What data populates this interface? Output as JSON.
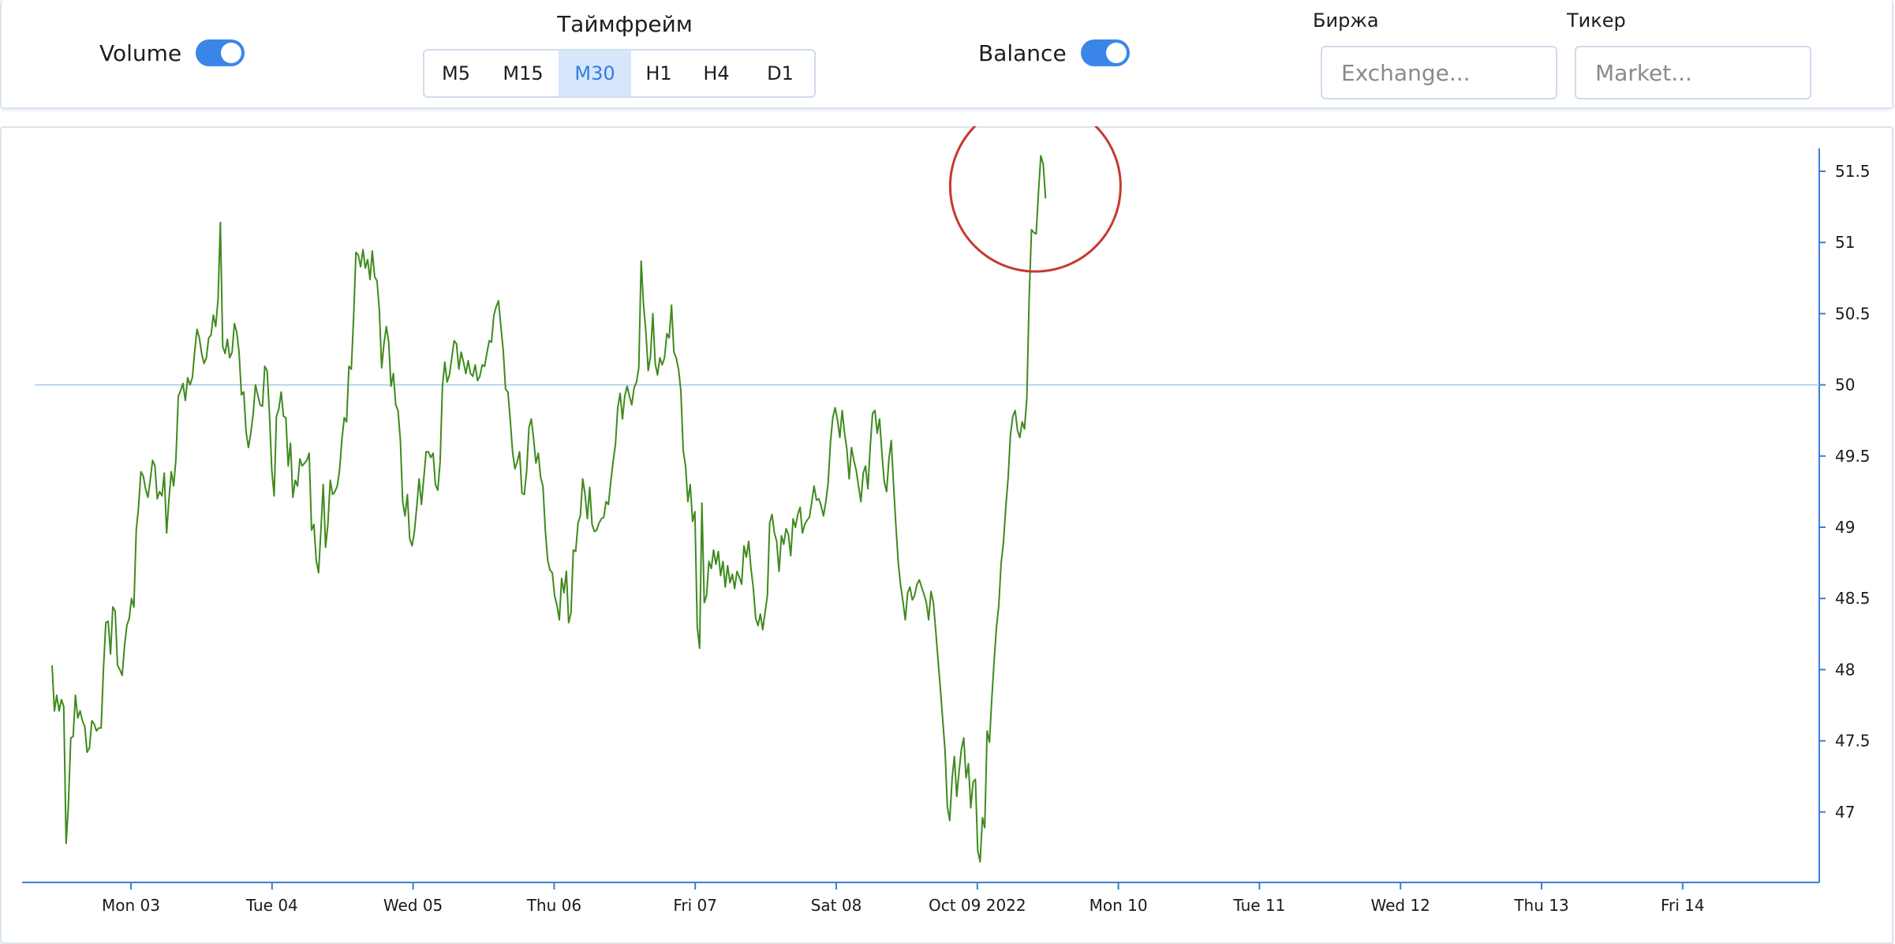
{
  "toolbar": {
    "volume": {
      "label": "Volume",
      "enabled": true
    },
    "timeframe": {
      "title": "Таймфрейм",
      "options": [
        "M5",
        "M15",
        "M30",
        "H1",
        "H4",
        "D1"
      ],
      "selected": "M30"
    },
    "balance": {
      "label": "Balance",
      "enabled": true
    },
    "exchange": {
      "label": "Биржа",
      "placeholder": "Exchange..."
    },
    "ticker": {
      "label": "Тикер",
      "placeholder": "Market..."
    }
  },
  "colors": {
    "accent": "#3a86e8",
    "line": "#3f8a1e",
    "axis": "#3a7fd6",
    "reference": "#a9c8ee",
    "highlight": "#c8372d"
  },
  "chart_data": {
    "type": "line",
    "x_tick_labels": [
      "Mon 03",
      "Tue 04",
      "Wed 05",
      "Thu 06",
      "Fri 07",
      "Sat 08",
      "Oct 09 2022",
      "Mon 10",
      "Tue 11",
      "Wed 12",
      "Thu 13",
      "Fri 14"
    ],
    "y_tick_labels": [
      "51.5",
      "51",
      "50.5",
      "50",
      "49.5",
      "49",
      "48.5",
      "48",
      "47.5",
      "47"
    ],
    "ylim": [
      46.5,
      51.65
    ],
    "reference_line": 50,
    "annotation": "circled last price peak",
    "series": [
      {
        "values": [
          48.03,
          47.71,
          47.82,
          47.71,
          47.79,
          47.74,
          46.78,
          47.05,
          47.52,
          47.53,
          47.82,
          47.66,
          47.71,
          47.64,
          47.6,
          47.42,
          47.45,
          47.64,
          47.62,
          47.57,
          47.59,
          47.59,
          48.01,
          48.33,
          48.34,
          48.11,
          48.44,
          48.41,
          48.03,
          48.0,
          47.96,
          48.17,
          48.31,
          48.36,
          48.5,
          48.44,
          48.98,
          49.14,
          49.39,
          49.36,
          49.27,
          49.21,
          49.33,
          49.47,
          49.43,
          49.2,
          49.25,
          49.22,
          49.38,
          48.96,
          49.2,
          49.39,
          49.29,
          49.48,
          49.92,
          49.96,
          50.01,
          49.89,
          50.05,
          50.0,
          50.05,
          50.23,
          50.39,
          50.33,
          50.22,
          50.15,
          50.19,
          50.33,
          50.35,
          50.49,
          50.41,
          50.6,
          51.14,
          50.27,
          50.22,
          50.32,
          50.19,
          50.23,
          50.43,
          50.37,
          50.23,
          49.93,
          49.95,
          49.67,
          49.56,
          49.66,
          49.79,
          50.0,
          49.93,
          49.86,
          49.85,
          50.13,
          50.1,
          49.79,
          49.4,
          49.22,
          49.78,
          49.83,
          49.95,
          49.78,
          49.77,
          49.43,
          49.59,
          49.21,
          49.33,
          49.29,
          49.48,
          49.43,
          49.45,
          49.47,
          49.52,
          48.98,
          49.02,
          48.77,
          48.68,
          48.97,
          49.3,
          48.86,
          49.02,
          49.33,
          49.23,
          49.25,
          49.29,
          49.4,
          49.62,
          49.77,
          49.74,
          50.13,
          50.11,
          50.47,
          50.93,
          50.91,
          50.83,
          50.95,
          50.82,
          50.88,
          50.74,
          50.94,
          50.76,
          50.73,
          50.53,
          50.12,
          50.29,
          50.41,
          50.3,
          49.99,
          50.08,
          49.86,
          49.82,
          49.61,
          49.18,
          49.08,
          49.23,
          48.92,
          48.87,
          48.97,
          49.14,
          49.34,
          49.16,
          49.34,
          49.53,
          49.53,
          49.49,
          49.52,
          49.3,
          49.26,
          49.46,
          49.99,
          50.16,
          50.02,
          50.07,
          50.19,
          50.31,
          50.29,
          50.11,
          50.23,
          50.16,
          50.08,
          50.17,
          50.08,
          50.06,
          50.14,
          50.03,
          50.06,
          50.14,
          50.13,
          50.22,
          50.31,
          50.3,
          50.49,
          50.55,
          50.59,
          50.41,
          50.24,
          49.97,
          49.95,
          49.76,
          49.53,
          49.41,
          49.46,
          49.53,
          49.24,
          49.23,
          49.39,
          49.7,
          49.76,
          49.62,
          49.45,
          49.52,
          49.35,
          49.29,
          48.98,
          48.77,
          48.7,
          48.68,
          48.52,
          48.45,
          48.35,
          48.64,
          48.54,
          48.69,
          48.33,
          48.4,
          48.84,
          48.83,
          49.03,
          49.08,
          49.34,
          49.23,
          49.06,
          49.28,
          49.02,
          48.97,
          48.98,
          49.03,
          49.06,
          49.07,
          49.18,
          49.16,
          49.32,
          49.46,
          49.58,
          49.84,
          49.94,
          49.76,
          49.92,
          49.99,
          49.92,
          49.86,
          49.98,
          50.02,
          50.12,
          50.87,
          50.57,
          50.38,
          50.1,
          50.2,
          50.5,
          50.15,
          50.07,
          50.19,
          50.14,
          50.19,
          50.36,
          50.33,
          50.56,
          50.23,
          50.19,
          50.11,
          49.96,
          49.54,
          49.43,
          49.18,
          49.3,
          49.04,
          49.11,
          48.3,
          48.15,
          49.17,
          48.47,
          48.52,
          48.76,
          48.71,
          48.84,
          48.74,
          48.83,
          48.66,
          48.76,
          48.58,
          48.73,
          48.61,
          48.67,
          48.57,
          48.69,
          48.65,
          48.6,
          48.87,
          48.79,
          48.9,
          48.71,
          48.57,
          48.36,
          48.31,
          48.39,
          48.28,
          48.4,
          48.52,
          49.03,
          49.09,
          48.96,
          48.9,
          48.69,
          48.94,
          48.88,
          48.99,
          48.95,
          48.8,
          49.06,
          49.0,
          49.09,
          49.14,
          48.96,
          49.02,
          49.05,
          49.07,
          49.18,
          49.29,
          49.19,
          49.2,
          49.15,
          49.08,
          49.18,
          49.31,
          49.6,
          49.77,
          49.84,
          49.75,
          49.63,
          49.82,
          49.66,
          49.55,
          49.34,
          49.56,
          49.47,
          49.4,
          49.29,
          49.18,
          49.38,
          49.43,
          49.27,
          49.56,
          49.8,
          49.82,
          49.66,
          49.76,
          49.52,
          49.32,
          49.25,
          49.48,
          49.61,
          49.29,
          49.01,
          48.75,
          48.59,
          48.48,
          48.35,
          48.54,
          48.58,
          48.49,
          48.52,
          48.6,
          48.63,
          48.58,
          48.53,
          48.47,
          48.35,
          48.55,
          48.47,
          48.28,
          48.07,
          47.87,
          47.65,
          47.43,
          47.04,
          46.94,
          47.23,
          47.39,
          47.11,
          47.28,
          47.44,
          47.52,
          47.24,
          47.34,
          47.03,
          47.21,
          47.23,
          46.73,
          46.65,
          46.96,
          46.89,
          47.57,
          47.49,
          47.79,
          48.06,
          48.3,
          48.45,
          48.75,
          48.89,
          49.14,
          49.35,
          49.65,
          49.78,
          49.82,
          49.68,
          49.63,
          49.74,
          49.69,
          49.91,
          50.61,
          51.09,
          51.07,
          51.06,
          51.36,
          51.61,
          51.55,
          51.31
        ]
      }
    ]
  }
}
